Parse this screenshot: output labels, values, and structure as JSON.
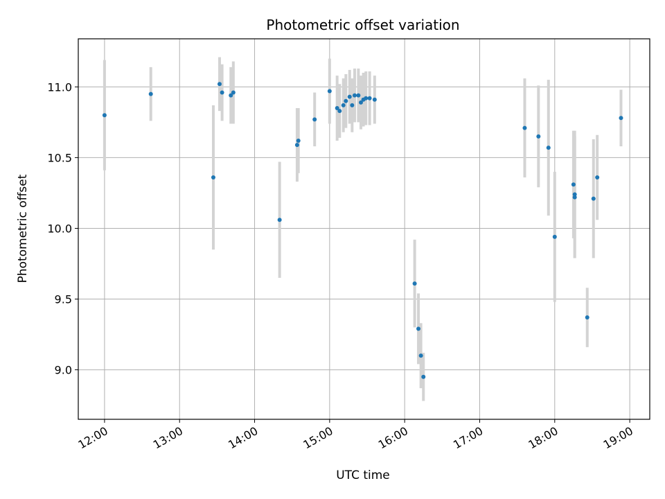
{
  "chart_data": {
    "type": "scatter",
    "title": "Photometric offset variation",
    "xlabel": "UTC time",
    "ylabel": "Photometric offset",
    "x_axis_type": "time",
    "x_ticks": [
      "12:00",
      "13:00",
      "14:00",
      "15:00",
      "16:00",
      "17:00",
      "18:00",
      "19:00"
    ],
    "y_ticks": [
      9.0,
      9.5,
      10.0,
      10.5,
      11.0
    ],
    "xlim": [
      "11:39",
      "19:16"
    ],
    "ylim": [
      8.65,
      11.34
    ],
    "grid": true,
    "legend": "none",
    "colors": {
      "point": "#1f77b4",
      "errorbar": "#d3d3d3",
      "grid": "#b0b0b0"
    },
    "points": [
      {
        "x": "12:00",
        "y": 10.8,
        "err": 0.39
      },
      {
        "x": "12:37",
        "y": 10.95,
        "err": 0.19
      },
      {
        "x": "13:27",
        "y": 10.36,
        "err": 0.51
      },
      {
        "x": "13:32",
        "y": 11.02,
        "err": 0.19
      },
      {
        "x": "13:34",
        "y": 10.96,
        "err": 0.2
      },
      {
        "x": "13:41",
        "y": 10.94,
        "err": 0.2
      },
      {
        "x": "13:43",
        "y": 10.96,
        "err": 0.22
      },
      {
        "x": "14:20",
        "y": 10.06,
        "err": 0.41
      },
      {
        "x": "14:34",
        "y": 10.59,
        "err": 0.26
      },
      {
        "x": "14:35",
        "y": 10.62,
        "err": 0.23
      },
      {
        "x": "14:48",
        "y": 10.77,
        "err": 0.19
      },
      {
        "x": "15:00",
        "y": 10.97,
        "err": 0.23
      },
      {
        "x": "15:06",
        "y": 10.85,
        "err": 0.23
      },
      {
        "x": "15:08",
        "y": 10.83,
        "err": 0.19
      },
      {
        "x": "15:11",
        "y": 10.87,
        "err": 0.19
      },
      {
        "x": "15:13",
        "y": 10.9,
        "err": 0.19
      },
      {
        "x": "15:16",
        "y": 10.93,
        "err": 0.19
      },
      {
        "x": "15:18",
        "y": 10.87,
        "err": 0.19
      },
      {
        "x": "15:20",
        "y": 10.94,
        "err": 0.19
      },
      {
        "x": "15:23",
        "y": 10.94,
        "err": 0.19
      },
      {
        "x": "15:25",
        "y": 10.89,
        "err": 0.19
      },
      {
        "x": "15:27",
        "y": 10.91,
        "err": 0.19
      },
      {
        "x": "15:29",
        "y": 10.92,
        "err": 0.19
      },
      {
        "x": "15:32",
        "y": 10.92,
        "err": 0.19
      },
      {
        "x": "15:36",
        "y": 10.91,
        "err": 0.17
      },
      {
        "x": "16:08",
        "y": 9.61,
        "err": 0.31
      },
      {
        "x": "16:11",
        "y": 9.29,
        "err": 0.25
      },
      {
        "x": "16:13",
        "y": 9.1,
        "err": 0.23
      },
      {
        "x": "16:15",
        "y": 8.95,
        "err": 0.17
      },
      {
        "x": "17:36",
        "y": 10.71,
        "err": 0.35
      },
      {
        "x": "17:47",
        "y": 10.65,
        "err": 0.36
      },
      {
        "x": "17:55",
        "y": 10.57,
        "err": 0.48
      },
      {
        "x": "18:00",
        "y": 9.94,
        "err": 0.46
      },
      {
        "x": "18:15",
        "y": 10.31,
        "err": 0.38
      },
      {
        "x": "18:16",
        "y": 10.24,
        "err": 0.45
      },
      {
        "x": "18:16",
        "y": 10.22,
        "err": 0.43
      },
      {
        "x": "18:26",
        "y": 9.37,
        "err": 0.21
      },
      {
        "x": "18:31",
        "y": 10.21,
        "err": 0.42
      },
      {
        "x": "18:34",
        "y": 10.36,
        "err": 0.3
      },
      {
        "x": "18:53",
        "y": 10.78,
        "err": 0.2
      }
    ]
  }
}
